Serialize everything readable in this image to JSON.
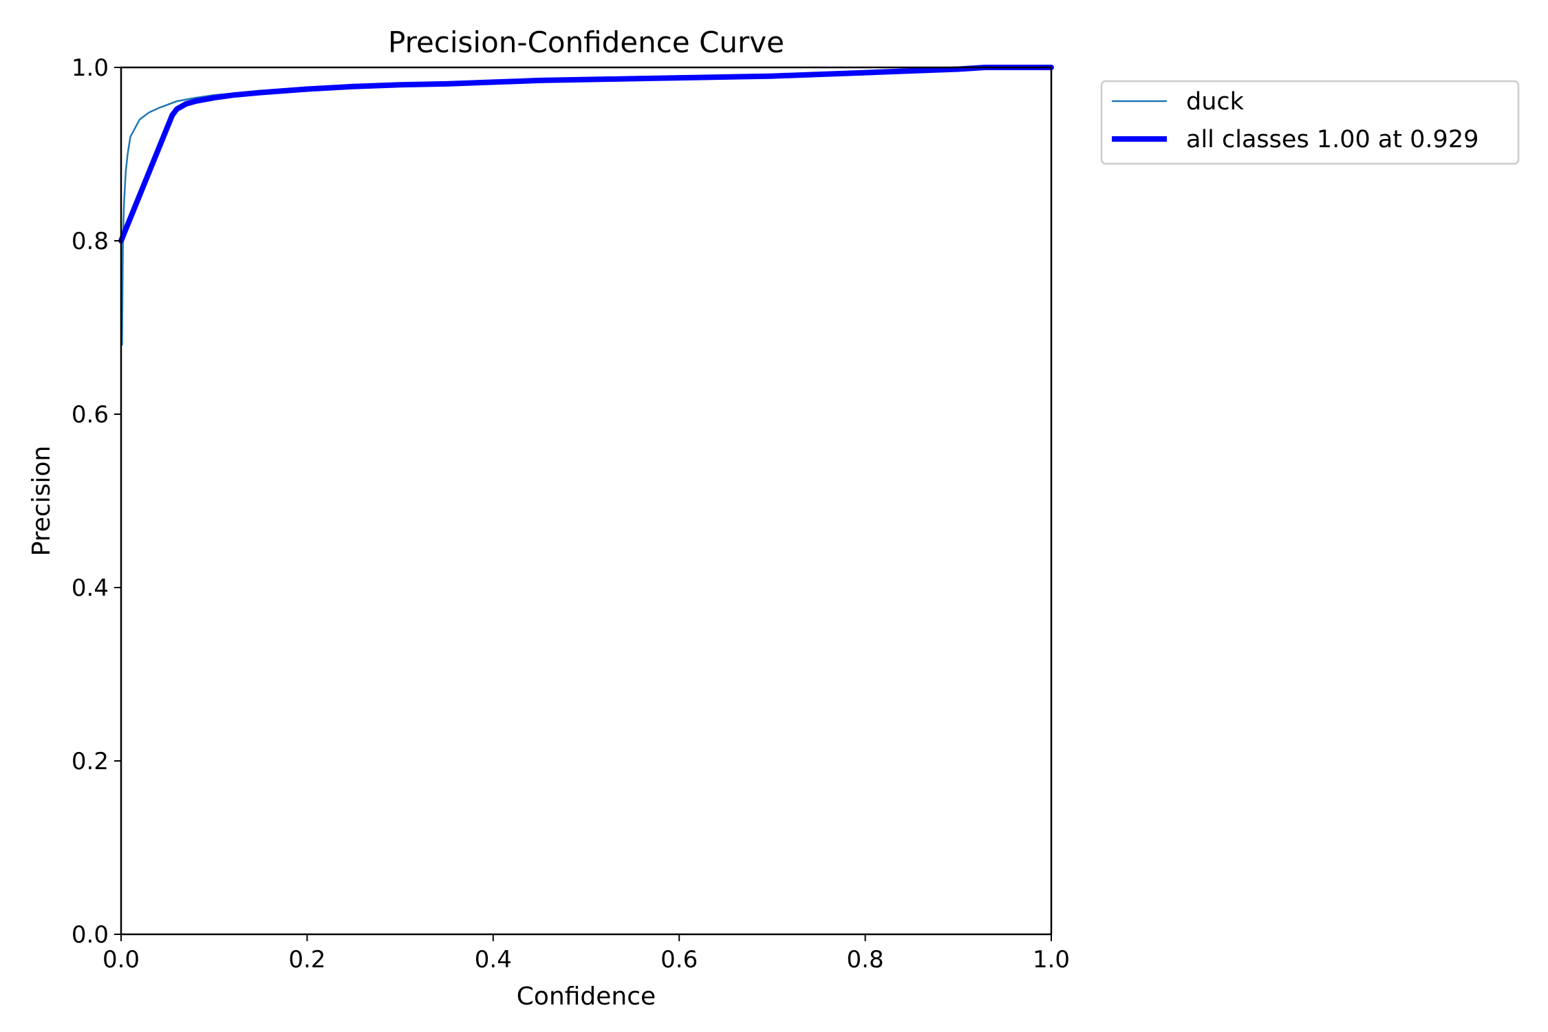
{
  "chart_data": {
    "type": "line",
    "title": "Precision-Confidence Curve",
    "xlabel": "Confidence",
    "ylabel": "Precision",
    "xlim": [
      0,
      1
    ],
    "ylim": [
      0,
      1
    ],
    "xticks": [
      "0.0",
      "0.2",
      "0.4",
      "0.6",
      "0.8",
      "1.0"
    ],
    "yticks": [
      "0.0",
      "0.2",
      "0.4",
      "0.6",
      "0.8",
      "1.0"
    ],
    "grid": false,
    "legend_position": "outside-top-right",
    "series": [
      {
        "name": "duck",
        "color": "#1f77b4",
        "x": [
          0.001,
          0.002,
          0.003,
          0.004,
          0.005,
          0.007,
          0.01,
          0.015,
          0.02,
          0.03,
          0.04,
          0.05,
          0.06,
          0.07,
          0.08,
          0.1,
          0.12,
          0.15,
          0.2,
          0.25,
          0.3,
          0.35,
          0.4,
          0.45,
          0.5,
          0.55,
          0.6,
          0.65,
          0.7,
          0.75,
          0.8,
          0.85,
          0.9,
          0.929,
          0.95,
          1.0
        ],
        "y": [
          0.68,
          0.8,
          0.84,
          0.86,
          0.88,
          0.9,
          0.92,
          0.93,
          0.94,
          0.948,
          0.953,
          0.957,
          0.961,
          0.963,
          0.965,
          0.968,
          0.97,
          0.972,
          0.975,
          0.978,
          0.98,
          0.981,
          0.983,
          0.985,
          0.986,
          0.987,
          0.988,
          0.989,
          0.99,
          0.992,
          0.994,
          0.996,
          0.998,
          1.0,
          1.0,
          1.0
        ]
      },
      {
        "name": "all classes 1.00 at 0.929",
        "color": "#0000ff",
        "x": [
          0.0,
          0.055,
          0.06,
          0.07,
          0.08,
          0.1,
          0.12,
          0.15,
          0.2,
          0.25,
          0.3,
          0.35,
          0.4,
          0.45,
          0.5,
          0.55,
          0.6,
          0.65,
          0.7,
          0.75,
          0.8,
          0.85,
          0.9,
          0.929,
          0.95,
          1.0
        ],
        "y": [
          0.8,
          0.945,
          0.952,
          0.958,
          0.961,
          0.965,
          0.968,
          0.971,
          0.975,
          0.978,
          0.98,
          0.981,
          0.983,
          0.985,
          0.986,
          0.987,
          0.988,
          0.989,
          0.99,
          0.992,
          0.994,
          0.996,
          0.998,
          1.0,
          1.0,
          1.0
        ]
      }
    ]
  }
}
